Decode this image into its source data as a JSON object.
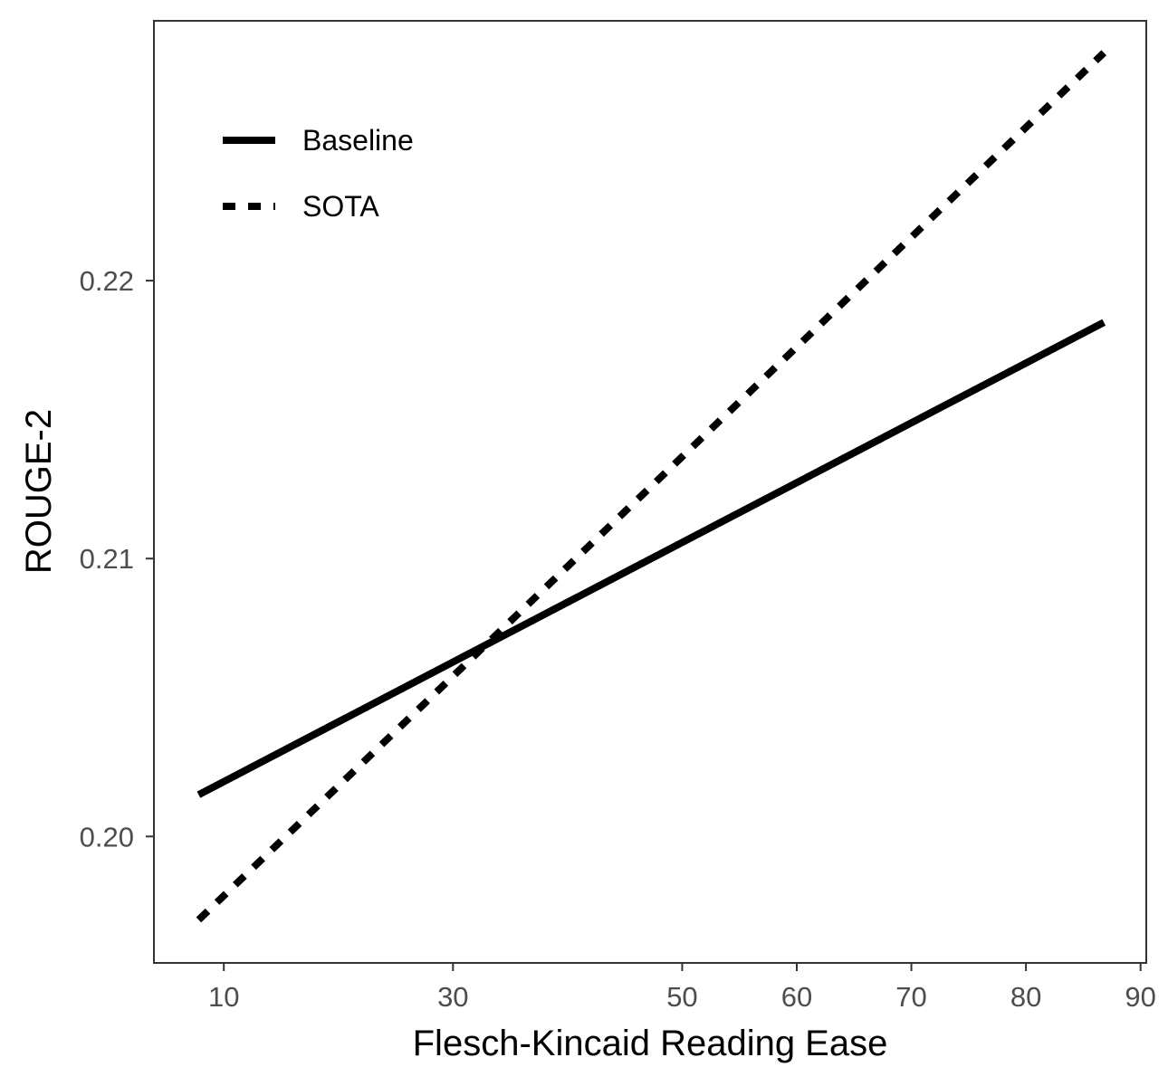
{
  "chart_data": {
    "type": "line",
    "title": "",
    "xlabel": "Flesch-Kincaid Reading Ease",
    "ylabel": "ROUGE-2",
    "xlim": [
      3.9,
      90.5
    ],
    "ylim": [
      0.19545,
      0.22935
    ],
    "x_ticks": [
      {
        "value": 10,
        "label": "10"
      },
      {
        "value": 30,
        "label": "30"
      },
      {
        "value": 50,
        "label": "50"
      },
      {
        "value": 60,
        "label": "60"
      },
      {
        "value": 70,
        "label": "70"
      },
      {
        "value": 80,
        "label": "80"
      },
      {
        "value": 90,
        "label": "90"
      }
    ],
    "y_ticks": [
      {
        "value": 0.2,
        "label": "0.20"
      },
      {
        "value": 0.21,
        "label": "0.21"
      },
      {
        "value": 0.22,
        "label": "0.22"
      }
    ],
    "grid": false,
    "legend_position": "top-left",
    "series": [
      {
        "name": "Baseline",
        "linestyle": "solid",
        "x": [
          7.8,
          86.8
        ],
        "y": [
          0.2015,
          0.2185
        ]
      },
      {
        "name": "SOTA",
        "linestyle": "dashed",
        "x": [
          7.8,
          86.8
        ],
        "y": [
          0.197,
          0.2282
        ]
      }
    ],
    "colors": {
      "lines": "#000000",
      "tick_text": "#4d4d4d",
      "panel_border": "#333333"
    }
  }
}
